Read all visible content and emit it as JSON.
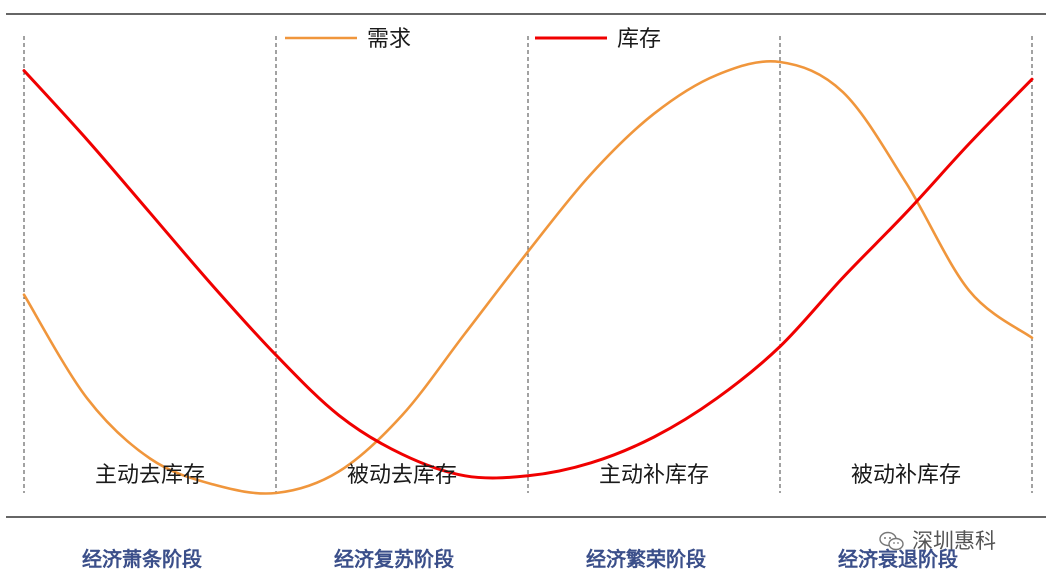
{
  "chart_data": {
    "type": "line",
    "title": "",
    "xlabel": "",
    "ylabel": "",
    "x": [
      0,
      0.25,
      0.5,
      0.75,
      1.0,
      1.25,
      1.5,
      1.75,
      2.0,
      2.25,
      2.5,
      2.75,
      3.0,
      3.25,
      3.5,
      3.75,
      4.0
    ],
    "xlim": [
      0,
      4
    ],
    "ylim": [
      0,
      1
    ],
    "grid": false,
    "legend_position": "top-center",
    "series": [
      {
        "name": "需求",
        "color": "#f0963c",
        "values": [
          0.46,
          0.22,
          0.08,
          0.02,
          0.0,
          0.05,
          0.18,
          0.37,
          0.56,
          0.74,
          0.88,
          0.97,
          1.0,
          0.93,
          0.72,
          0.47,
          0.36
        ]
      },
      {
        "name": "库存",
        "color": "#f00000",
        "values": [
          0.98,
          0.82,
          0.65,
          0.48,
          0.32,
          0.18,
          0.09,
          0.04,
          0.04,
          0.07,
          0.13,
          0.22,
          0.34,
          0.5,
          0.65,
          0.81,
          0.96
        ]
      }
    ],
    "phases": [
      "主动去库存",
      "被动去库存",
      "主动补库存",
      "被动补库存"
    ],
    "stages": [
      "经济萧条阶段",
      "经济复苏阶段",
      "经济繁荣阶段",
      "经济衰退阶段"
    ]
  },
  "colors": {
    "axis_line": "#333333",
    "divider": "#444444",
    "stage_text": "#3b4f8a"
  },
  "watermark": {
    "icon": "wechat-icon",
    "text": "深圳惠科"
  }
}
